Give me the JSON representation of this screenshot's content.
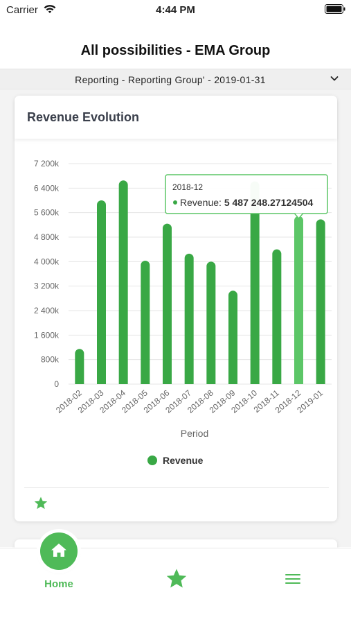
{
  "status_bar": {
    "carrier": "Carrier",
    "time": "4:44 PM",
    "wifi_icon": "wifi-icon",
    "battery_icon": "battery-icon"
  },
  "app": {
    "title": "All possibilities - EMA Group",
    "selector_text": "Reporting - Reporting Group' - 2019-01-31",
    "selector_icon": "chevron-down-icon",
    "accent_color": "#4fba58"
  },
  "card": {
    "title": "Revenue Evolution",
    "footer_icon": "star-icon"
  },
  "chart_data": {
    "type": "bar",
    "title": "",
    "xlabel": "Period",
    "ylabel": "",
    "categories": [
      "2018-02",
      "2018-03",
      "2018-04",
      "2018-05",
      "2018-06",
      "2018-07",
      "2018-08",
      "2018-09",
      "2018-10",
      "2018-11",
      "2018-12",
      "2019-01"
    ],
    "series": [
      {
        "name": "Revenue",
        "color": "#39a845",
        "highlight_color": "#5cc667",
        "values": [
          1150000,
          6000000,
          6650000,
          4030000,
          5240000,
          4260000,
          4000000,
          3050000,
          6620000,
          4400000,
          5487248.27124504,
          5380000
        ]
      }
    ],
    "ylim": [
      0,
      7200000
    ],
    "yticks": [
      0,
      800000,
      1600000,
      2400000,
      3200000,
      4000000,
      4800000,
      5600000,
      6400000,
      7200000
    ],
    "ytick_labels": [
      "0",
      "800k",
      "1 600k",
      "2 400k",
      "3 200k",
      "4 000k",
      "4 800k",
      "5 600k",
      "6 400k",
      "7 200k"
    ],
    "grid": true,
    "legend": "bottom",
    "tooltip": {
      "category": "2018-12",
      "title": "2018-12",
      "series_label": "Revenue: ",
      "value_text": "5 487 248.27124504"
    }
  },
  "tab_bar": {
    "items": [
      {
        "label": "Home",
        "icon": "home-icon",
        "active": true
      },
      {
        "label": "",
        "icon": "star-icon",
        "active": false
      },
      {
        "label": "",
        "icon": "menu-icon",
        "active": false
      }
    ]
  }
}
